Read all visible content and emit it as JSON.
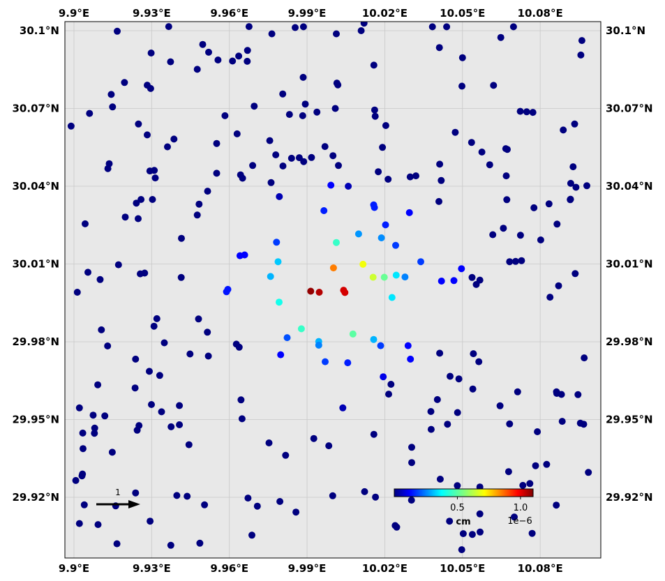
{
  "chart_data": {
    "type": "scatter",
    "title": "",
    "xlim": [
      9.8965,
      10.1034
    ],
    "ylim": [
      29.8966,
      30.1035
    ],
    "x_ticks": [
      {
        "value": 9.9,
        "label": "9.9°E"
      },
      {
        "value": 9.93,
        "label": "9.93°E"
      },
      {
        "value": 9.96,
        "label": "9.96°E"
      },
      {
        "value": 9.99,
        "label": "9.99°E"
      },
      {
        "value": 10.02,
        "label": "10.02°E"
      },
      {
        "value": 10.05,
        "label": "10.05°E"
      },
      {
        "value": 10.08,
        "label": "10.08°E"
      }
    ],
    "y_ticks": [
      {
        "value": 30.1,
        "label": "30.1°N"
      },
      {
        "value": 30.07,
        "label": "30.07°N"
      },
      {
        "value": 30.04,
        "label": "30.04°N"
      },
      {
        "value": 30.01,
        "label": "30.01°N"
      },
      {
        "value": 29.98,
        "label": "29.98°N"
      },
      {
        "value": 29.95,
        "label": "29.95°N"
      },
      {
        "value": 29.92,
        "label": "29.92°N"
      }
    ],
    "grid": true,
    "colormap": "jet",
    "color_range": [
      0,
      1.1
    ],
    "colorbar": {
      "ticks": [
        {
          "value": 0.5,
          "label": "0.5"
        },
        {
          "value": 1.0,
          "label": "1.0"
        }
      ],
      "unit": "cm",
      "scale": "1e−6"
    },
    "vector_key": {
      "label": "1"
    },
    "points": [
      [
        9.9167,
        30.0998,
        0
      ],
      [
        9.9366,
        30.1016,
        0
      ],
      [
        9.9497,
        30.0947,
        0
      ],
      [
        9.952,
        30.0917,
        0
      ],
      [
        9.9556,
        30.0887,
        0
      ],
      [
        9.9612,
        30.0883,
        0
      ],
      [
        9.9636,
        30.0902,
        0
      ],
      [
        9.967,
        30.0924,
        0
      ],
      [
        9.9676,
        30.1016,
        0
      ],
      [
        9.9764,
        30.0988,
        0
      ],
      [
        9.9886,
        30.1015,
        0
      ],
      [
        9.9854,
        30.1012,
        0
      ],
      [
        10.0013,
        30.0988,
        0
      ],
      [
        10.012,
        30.1029,
        0
      ],
      [
        10.0109,
        30.1,
        0
      ],
      [
        10.0411,
        30.0935,
        0
      ],
      [
        10.0384,
        30.1015,
        0
      ],
      [
        10.0439,
        30.1015,
        0
      ],
      [
        10.05,
        30.0896,
        0
      ],
      [
        10.0697,
        30.1015,
        0
      ],
      [
        10.0648,
        30.0974,
        0
      ],
      [
        10.0961,
        30.0962,
        0
      ],
      [
        10.0957,
        30.0906,
        0
      ],
      [
        9.9298,
        30.0914,
        0
      ],
      [
        9.9373,
        30.088,
        0
      ],
      [
        9.9476,
        30.0851,
        0
      ],
      [
        9.9669,
        30.0882,
        0
      ],
      [
        9.9885,
        30.082,
        0
      ],
      [
        10.0015,
        30.0798,
        0
      ],
      [
        10.0019,
        30.0791,
        0
      ],
      [
        9.9195,
        30.08,
        0
      ],
      [
        9.9144,
        30.0754,
        0
      ],
      [
        9.9283,
        30.079,
        0
      ],
      [
        9.9296,
        30.0777,
        0
      ],
      [
        9.9806,
        30.0756,
        0
      ],
      [
        9.9696,
        30.0709,
        0
      ],
      [
        10.0158,
        30.0867,
        0
      ],
      [
        10.0498,
        30.0786,
        0
      ],
      [
        10.062,
        30.0789,
        0
      ],
      [
        9.9149,
        30.0706,
        0
      ],
      [
        9.906,
        30.0681,
        0
      ],
      [
        9.8989,
        30.0632,
        0
      ],
      [
        9.9249,
        30.064,
        0
      ],
      [
        9.9283,
        30.0598,
        0
      ],
      [
        9.9583,
        30.0672,
        0
      ],
      [
        9.9832,
        30.0677,
        0
      ],
      [
        9.9883,
        30.0672,
        0
      ],
      [
        9.9938,
        30.0686,
        0
      ],
      [
        9.9893,
        30.0717,
        0
      ],
      [
        10.0009,
        30.07,
        0
      ],
      [
        10.0161,
        30.0694,
        0
      ],
      [
        10.0163,
        30.067,
        0
      ],
      [
        10.0204,
        30.0634,
        0
      ],
      [
        10.0472,
        30.0608,
        0
      ],
      [
        10.0723,
        30.0689,
        0
      ],
      [
        10.0748,
        30.0687,
        0
      ],
      [
        10.0772,
        30.0685,
        0
      ],
      [
        10.0889,
        30.0617,
        0
      ],
      [
        10.0933,
        30.064,
        0
      ],
      [
        9.9386,
        30.0582,
        0
      ],
      [
        9.9361,
        30.0552,
        0
      ],
      [
        9.9551,
        30.0565,
        0
      ],
      [
        9.963,
        30.0602,
        0
      ],
      [
        9.9756,
        30.0576,
        0
      ],
      [
        9.9779,
        30.0521,
        0
      ],
      [
        9.984,
        30.0508,
        0
      ],
      [
        9.987,
        30.051,
        0
      ],
      [
        9.9917,
        30.0511,
        0
      ],
      [
        9.9887,
        30.0495,
        0
      ],
      [
        9.9807,
        30.0478,
        0
      ],
      [
        9.969,
        30.048,
        0
      ],
      [
        9.9969,
        30.0553,
        0
      ],
      [
        10.0,
        30.0518,
        0
      ],
      [
        10.0021,
        30.048,
        0
      ],
      [
        10.0191,
        30.055,
        0
      ],
      [
        10.0535,
        30.0569,
        0
      ],
      [
        10.0575,
        30.0532,
        0
      ],
      [
        10.0667,
        30.0545,
        0
      ],
      [
        10.0673,
        30.0542,
        0
      ],
      [
        9.9136,
        30.0487,
        0
      ],
      [
        9.9131,
        30.0468,
        0
      ],
      [
        9.9293,
        30.0459,
        0
      ],
      [
        9.931,
        30.0461,
        0
      ],
      [
        9.9314,
        30.0432,
        0
      ],
      [
        9.9551,
        30.045,
        0
      ],
      [
        9.9643,
        30.0444,
        0
      ],
      [
        9.9651,
        30.0431,
        0
      ],
      [
        10.0175,
        30.0456,
        0
      ],
      [
        10.0213,
        30.0427,
        0
      ],
      [
        10.0298,
        30.0436,
        0
      ],
      [
        10.032,
        30.044,
        0
      ],
      [
        10.0412,
        30.0485,
        0
      ],
      [
        10.0418,
        30.0422,
        0
      ],
      [
        10.0605,
        30.0483,
        0
      ],
      [
        10.0669,
        30.044,
        0
      ],
      [
        10.0927,
        30.0475,
        0
      ],
      [
        10.0918,
        30.0411,
        0
      ],
      [
        9.9761,
        30.0414,
        0
      ],
      [
        9.9992,
        30.0404,
        0.12
      ],
      [
        10.0059,
        30.04,
        0.05
      ],
      [
        9.9241,
        30.0335,
        0
      ],
      [
        9.9259,
        30.0349,
        0
      ],
      [
        9.9483,
        30.0331,
        0
      ],
      [
        9.9516,
        30.0381,
        0
      ],
      [
        9.9303,
        30.0349,
        0
      ],
      [
        9.9793,
        30.036,
        0.05
      ],
      [
        9.9965,
        30.0306,
        0.15
      ],
      [
        10.0157,
        30.0328,
        0.15
      ],
      [
        10.016,
        30.0318,
        0.15
      ],
      [
        10.0295,
        30.0298,
        0.12
      ],
      [
        10.0409,
        30.0341,
        0
      ],
      [
        10.0671,
        30.0348,
        0
      ],
      [
        10.0776,
        30.0317,
        0
      ],
      [
        10.0834,
        30.0332,
        0
      ],
      [
        10.0917,
        30.035,
        0
      ],
      [
        10.0916,
        30.0348,
        0
      ],
      [
        10.0938,
        30.0396,
        0
      ],
      [
        10.098,
        30.0402,
        0
      ],
      [
        9.9198,
        30.0281,
        0
      ],
      [
        9.9248,
        30.0275,
        0
      ],
      [
        9.9476,
        30.0289,
        0
      ],
      [
        9.9043,
        30.0255,
        0
      ],
      [
        10.0203,
        30.0251,
        0.15
      ],
      [
        10.0099,
        30.0216,
        0.27
      ],
      [
        10.0187,
        30.0201,
        0.26
      ],
      [
        10.0242,
        30.0172,
        0.18
      ],
      [
        10.0617,
        30.0213,
        0
      ],
      [
        10.0658,
        30.0238,
        0
      ],
      [
        10.0724,
        30.0211,
        0
      ],
      [
        10.0802,
        30.0193,
        0
      ],
      [
        10.0865,
        30.0254,
        0
      ],
      [
        9.9415,
        30.0199,
        0
      ],
      [
        9.9782,
        30.0184,
        0.18
      ],
      [
        10.0013,
        30.0183,
        0.45
      ],
      [
        9.9641,
        30.0132,
        0.12
      ],
      [
        9.9659,
        30.0135,
        0.12
      ],
      [
        9.9788,
        30.0109,
        0.32
      ],
      [
        9.9759,
        30.0052,
        0.3
      ],
      [
        10.0339,
        30.0109,
        0.18
      ],
      [
        10.0002,
        30.0085,
        0.85
      ],
      [
        10.0116,
        30.0099,
        0.7
      ],
      [
        10.0155,
        30.0049,
        0.65
      ],
      [
        10.0198,
        30.0049,
        0.52
      ],
      [
        10.0244,
        30.0057,
        0.35
      ],
      [
        10.0278,
        30.005,
        0.25
      ],
      [
        10.0419,
        30.0034,
        0.12
      ],
      [
        10.0467,
        30.0036,
        0.12
      ],
      [
        10.0496,
        30.0082,
        0.12
      ],
      [
        10.0537,
        30.0048,
        0
      ],
      [
        10.0567,
        30.0038,
        0
      ],
      [
        10.0553,
        30.0021,
        0
      ],
      [
        10.0682,
        30.0109,
        0
      ],
      [
        10.0728,
        30.0113,
        0
      ],
      [
        10.0705,
        30.011,
        0
      ],
      [
        9.9101,
        30.004,
        0
      ],
      [
        9.9054,
        30.0068,
        0
      ],
      [
        9.9172,
        30.0097,
        0
      ],
      [
        9.9273,
        30.0065,
        0
      ],
      [
        9.9256,
        30.0062,
        0
      ],
      [
        9.9414,
        30.0048,
        0
      ],
      [
        9.9594,
        30.0002,
        0.14
      ],
      [
        9.9589,
        29.9993,
        0.14
      ],
      [
        9.9013,
        29.9991,
        0
      ],
      [
        9.9914,
        29.9995,
        1.08
      ],
      [
        9.9947,
        29.9991,
        1.05
      ],
      [
        10.0041,
        29.9999,
        1.02
      ],
      [
        10.0046,
        29.999,
        1.02
      ],
      [
        9.9792,
        29.9953,
        0.4
      ],
      [
        10.0228,
        29.9971,
        0.35
      ],
      [
        10.0838,
        29.9972,
        0
      ],
      [
        10.0871,
        30.0016,
        0
      ],
      [
        10.0935,
        30.0063,
        0
      ],
      [
        9.932,
        29.9889,
        0
      ],
      [
        9.9481,
        29.9888,
        0
      ],
      [
        9.9106,
        29.9846,
        0
      ],
      [
        9.9309,
        29.986,
        0
      ],
      [
        9.9515,
        29.9837,
        0
      ],
      [
        9.9878,
        29.985,
        0.45
      ],
      [
        9.9823,
        29.9816,
        0.2
      ],
      [
        9.9945,
        29.9801,
        0.3
      ],
      [
        9.9945,
        29.9787,
        0.25
      ],
      [
        10.0077,
        29.983,
        0.5
      ],
      [
        10.0157,
        29.9809,
        0.3
      ],
      [
        10.0184,
        29.9785,
        0.18
      ],
      [
        10.029,
        29.9785,
        0.12
      ],
      [
        9.913,
        29.9784,
        0
      ],
      [
        9.9349,
        29.9796,
        0
      ],
      [
        9.9448,
        29.9753,
        0
      ],
      [
        9.9519,
        29.9745,
        0
      ],
      [
        9.9627,
        29.9791,
        0
      ],
      [
        9.9638,
        29.9779,
        0
      ],
      [
        9.9798,
        29.975,
        0.12
      ],
      [
        9.997,
        29.9723,
        0.18
      ],
      [
        10.0057,
        29.9719,
        0.15
      ],
      [
        10.0299,
        29.9733,
        0.12
      ],
      [
        10.0412,
        29.9756,
        0
      ],
      [
        10.0542,
        29.9754,
        0
      ],
      [
        10.0563,
        29.9723,
        0
      ],
      [
        10.097,
        29.9738,
        0
      ],
      [
        9.9238,
        29.9733,
        0
      ],
      [
        9.9291,
        29.9686,
        0
      ],
      [
        9.9331,
        29.967,
        0
      ],
      [
        9.9092,
        29.9634,
        0
      ],
      [
        9.9236,
        29.9622,
        0
      ],
      [
        10.0194,
        29.9665,
        0.1
      ],
      [
        10.0224,
        29.9636,
        0
      ],
      [
        10.0452,
        29.9667,
        0
      ],
      [
        10.0486,
        29.9657,
        0
      ],
      [
        10.054,
        29.9618,
        0
      ],
      [
        10.0713,
        29.9607,
        0
      ],
      [
        10.0863,
        29.9607,
        0
      ],
      [
        10.0864,
        29.9601,
        0
      ],
      [
        10.0882,
        29.9597,
        0
      ],
      [
        10.0946,
        29.9596,
        0
      ],
      [
        9.9021,
        29.9545,
        0
      ],
      [
        9.9299,
        29.9558,
        0
      ],
      [
        9.9338,
        29.953,
        0
      ],
      [
        9.9407,
        29.9554,
        0
      ],
      [
        9.9645,
        29.9576,
        0
      ],
      [
        10.0038,
        29.9545,
        0.05
      ],
      [
        10.0215,
        29.9598,
        0
      ],
      [
        10.0378,
        29.9531,
        0
      ],
      [
        10.0403,
        29.9577,
        0
      ],
      [
        10.0481,
        29.9527,
        0
      ],
      [
        10.0645,
        29.9553,
        0
      ],
      [
        10.0885,
        29.9493,
        0
      ],
      [
        9.9074,
        29.9517,
        0
      ],
      [
        9.9119,
        29.9514,
        0
      ],
      [
        9.908,
        29.9467,
        0
      ],
      [
        9.9034,
        29.9448,
        0
      ],
      [
        9.9079,
        29.9447,
        0
      ],
      [
        9.9251,
        29.9477,
        0
      ],
      [
        9.9244,
        29.9459,
        0
      ],
      [
        9.9375,
        29.9472,
        0
      ],
      [
        9.9407,
        29.948,
        0
      ],
      [
        9.9649,
        29.9503,
        0
      ],
      [
        10.0379,
        29.9462,
        0
      ],
      [
        10.0442,
        29.9482,
        0
      ],
      [
        10.0682,
        29.9483,
        0
      ],
      [
        10.0789,
        29.9453,
        0
      ],
      [
        10.0955,
        29.9486,
        0
      ],
      [
        10.0968,
        29.9482,
        0
      ],
      [
        9.9035,
        29.9388,
        0
      ],
      [
        9.9148,
        29.9374,
        0
      ],
      [
        9.9444,
        29.9403,
        0
      ],
      [
        9.9753,
        29.941,
        0
      ],
      [
        9.9926,
        29.9427,
        0
      ],
      [
        9.9984,
        29.9399,
        0
      ],
      [
        10.0158,
        29.9443,
        0
      ],
      [
        9.9817,
        29.9362,
        0
      ],
      [
        10.0304,
        29.9393,
        0
      ],
      [
        10.0304,
        29.9334,
        0
      ],
      [
        9.9033,
        29.929,
        0
      ],
      [
        9.9031,
        29.9283,
        0
      ],
      [
        9.9007,
        29.9265,
        0
      ],
      [
        10.0678,
        29.9299,
        0
      ],
      [
        10.0782,
        29.9322,
        0
      ],
      [
        10.0825,
        29.9327,
        0
      ],
      [
        10.0986,
        29.9296,
        0
      ],
      [
        10.0414,
        29.927,
        0
      ],
      [
        10.048,
        29.9245,
        0
      ],
      [
        10.0567,
        29.924,
        0
      ],
      [
        10.0733,
        29.9246,
        0
      ],
      [
        10.076,
        29.9253,
        0
      ],
      [
        9.9238,
        29.9217,
        0
      ],
      [
        9.9397,
        29.9207,
        0
      ],
      [
        9.9437,
        29.9204,
        0
      ],
      [
        9.9672,
        29.9197,
        0
      ],
      [
        9.9999,
        29.9206,
        0
      ],
      [
        10.0122,
        29.9222,
        0
      ],
      [
        10.0164,
        29.9201,
        0
      ],
      [
        10.0303,
        29.9189,
        0
      ],
      [
        9.904,
        29.9171,
        0
      ],
      [
        9.9161,
        29.9167,
        0
      ],
      [
        9.9504,
        29.9171,
        0
      ],
      [
        9.9708,
        29.9166,
        0
      ],
      [
        9.9795,
        29.9184,
        0
      ],
      [
        9.9857,
        29.9143,
        0
      ],
      [
        10.0862,
        29.917,
        0
      ],
      [
        10.0567,
        29.9136,
        0
      ],
      [
        10.07,
        29.9124,
        0
      ],
      [
        9.9021,
        29.9099,
        0
      ],
      [
        9.9093,
        29.9095,
        0
      ],
      [
        9.9294,
        29.9108,
        0
      ],
      [
        10.024,
        29.9091,
        0
      ],
      [
        10.0246,
        29.9085,
        0
      ],
      [
        10.045,
        29.9108,
        0
      ],
      [
        10.0503,
        29.906,
        0
      ],
      [
        10.0538,
        29.9057,
        0
      ],
      [
        10.0568,
        29.9066,
        0
      ],
      [
        10.0769,
        29.9061,
        0
      ],
      [
        9.9687,
        29.9054,
        0
      ],
      [
        9.9166,
        29.9021,
        0
      ],
      [
        9.9374,
        29.9015,
        0
      ],
      [
        9.9486,
        29.9023,
        0
      ],
      [
        10.0497,
        29.8998,
        0
      ]
    ]
  }
}
